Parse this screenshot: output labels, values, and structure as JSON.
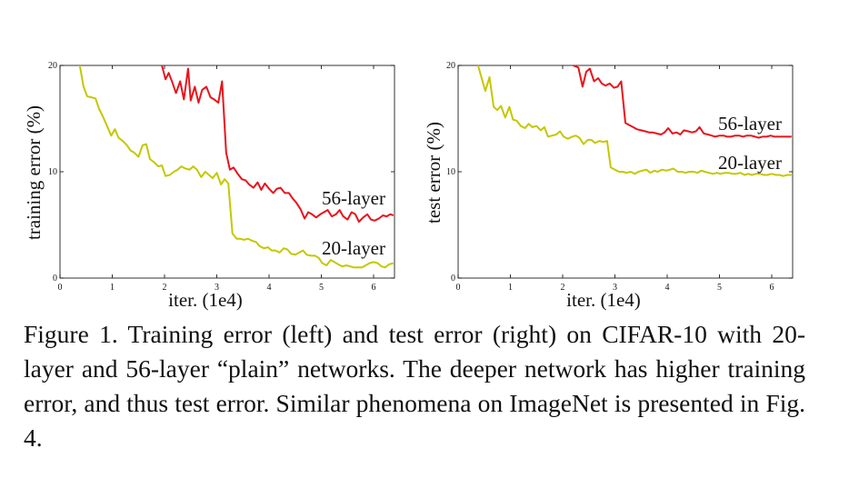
{
  "caption": "Figure 1. Training error (left) and test error (right) on CIFAR-10 with 20-layer and 56-layer “plain” networks. The deeper network has higher training error, and thus test error. Similar phenomena on ImageNet is presented in Fig. 4.",
  "chart_data": [
    {
      "type": "line",
      "xlabel": "iter. (1e4)",
      "ylabel": "training error (%)",
      "xlim": [
        0,
        6.4
      ],
      "ylim": [
        0,
        20
      ],
      "xticks": [
        "0",
        "1",
        "2",
        "3",
        "4",
        "5",
        "6"
      ],
      "yticks": [
        "0",
        "10",
        "20"
      ],
      "grid": false,
      "series": [
        {
          "name": "56-layer",
          "color": "#e8141c",
          "x": [
            1.95,
            2.02,
            2.08,
            2.15,
            2.22,
            2.3,
            2.37,
            2.45,
            2.5,
            2.58,
            2.65,
            2.72,
            2.8,
            2.88,
            2.95,
            3.03,
            3.1,
            3.18,
            3.25,
            3.32,
            3.4,
            3.48,
            3.55,
            3.62,
            3.7,
            3.78,
            3.85,
            3.92,
            4.0,
            4.08,
            4.15,
            4.22,
            4.3,
            4.38,
            4.45,
            4.52,
            4.6,
            4.68,
            4.75,
            4.82,
            4.9,
            4.98,
            5.05,
            5.12,
            5.2,
            5.28,
            5.35,
            5.42,
            5.5,
            5.58,
            5.65,
            5.72,
            5.8,
            5.88,
            5.95,
            6.02,
            6.1,
            6.18,
            6.25,
            6.32,
            6.38
          ],
          "y": [
            20.0,
            18.7,
            19.3,
            18.4,
            17.4,
            18.5,
            16.8,
            19.7,
            16.7,
            18.0,
            16.5,
            17.7,
            18.0,
            17.0,
            16.8,
            16.5,
            18.5,
            11.8,
            10.2,
            10.4,
            9.8,
            9.3,
            9.2,
            8.8,
            8.5,
            9.0,
            8.3,
            8.9,
            8.4,
            8.0,
            8.4,
            8.5,
            8.0,
            8.0,
            7.5,
            7.1,
            6.5,
            5.6,
            6.2,
            6.0,
            5.7,
            6.0,
            6.2,
            6.4,
            5.8,
            6.0,
            6.4,
            5.8,
            5.5,
            6.2,
            6.0,
            5.3,
            5.7,
            6.0,
            5.5,
            5.4,
            5.6,
            5.9,
            5.8,
            6.0,
            5.9
          ]
        },
        {
          "name": "20-layer",
          "color": "#c5c700",
          "x": [
            0.38,
            0.45,
            0.52,
            0.6,
            0.68,
            0.75,
            0.82,
            0.9,
            0.98,
            1.05,
            1.12,
            1.2,
            1.28,
            1.35,
            1.42,
            1.5,
            1.58,
            1.65,
            1.72,
            1.8,
            1.88,
            1.95,
            2.02,
            2.1,
            2.18,
            2.25,
            2.32,
            2.4,
            2.48,
            2.55,
            2.62,
            2.7,
            2.78,
            2.85,
            2.92,
            3.0,
            3.08,
            3.15,
            3.22,
            3.3,
            3.38,
            3.45,
            3.52,
            3.6,
            3.68,
            3.75,
            3.82,
            3.9,
            3.98,
            4.05,
            4.12,
            4.2,
            4.28,
            4.35,
            4.42,
            4.5,
            4.58,
            4.65,
            4.72,
            4.8,
            4.88,
            4.95,
            5.02,
            5.1,
            5.18,
            5.25,
            5.32,
            5.4,
            5.48,
            5.55,
            5.62,
            5.7,
            5.78,
            5.85,
            5.92,
            6.0,
            6.08,
            6.15,
            6.22,
            6.3,
            6.38
          ],
          "y": [
            20.0,
            18.0,
            17.1,
            17.0,
            16.9,
            15.9,
            15.2,
            14.3,
            13.4,
            14.0,
            13.2,
            12.9,
            12.5,
            12.0,
            11.8,
            11.4,
            12.5,
            12.6,
            11.2,
            10.9,
            10.5,
            10.6,
            9.6,
            9.7,
            10.0,
            10.2,
            10.5,
            10.3,
            10.2,
            10.5,
            10.2,
            9.5,
            10.0,
            9.7,
            9.4,
            9.9,
            8.8,
            9.3,
            8.9,
            4.2,
            3.7,
            3.7,
            3.6,
            3.7,
            3.5,
            3.4,
            3.0,
            2.8,
            2.9,
            2.6,
            2.6,
            2.4,
            2.8,
            2.7,
            2.3,
            2.2,
            2.4,
            2.6,
            2.2,
            2.1,
            2.1,
            1.9,
            1.4,
            1.2,
            1.7,
            1.5,
            1.3,
            1.1,
            1.2,
            1.1,
            1.0,
            1.0,
            1.0,
            1.2,
            1.4,
            1.5,
            1.4,
            1.1,
            1.0,
            1.3,
            1.4
          ]
        }
      ]
    },
    {
      "type": "line",
      "xlabel": "iter. (1e4)",
      "ylabel": "test error (%)",
      "xlim": [
        0,
        6.4
      ],
      "ylim": [
        0,
        20
      ],
      "xticks": [
        "0",
        "1",
        "2",
        "3",
        "4",
        "5",
        "6"
      ],
      "yticks": [
        "0",
        "10",
        "20"
      ],
      "grid": false,
      "series": [
        {
          "name": "56-layer",
          "color": "#e8141c",
          "x": [
            2.2,
            2.3,
            2.38,
            2.45,
            2.52,
            2.6,
            2.68,
            2.75,
            2.82,
            2.9,
            2.98,
            3.05,
            3.12,
            3.2,
            3.27,
            3.35,
            3.42,
            3.5,
            3.58,
            3.65,
            3.72,
            3.8,
            3.88,
            3.95,
            4.02,
            4.1,
            4.18,
            4.25,
            4.32,
            4.4,
            4.48,
            4.55,
            4.62,
            4.7,
            4.78,
            4.85,
            4.92,
            5.0,
            5.08,
            5.15,
            5.22,
            5.3,
            5.38,
            5.45,
            5.52,
            5.6,
            5.68,
            5.75,
            5.82,
            5.9,
            5.98,
            6.05,
            6.12,
            6.2,
            6.28,
            6.38
          ],
          "y": [
            20.0,
            19.8,
            18.0,
            19.4,
            19.7,
            18.5,
            18.8,
            18.3,
            18.1,
            18.3,
            17.9,
            18.0,
            18.5,
            14.6,
            14.4,
            14.2,
            14.0,
            13.9,
            13.8,
            13.7,
            13.7,
            13.6,
            13.5,
            13.7,
            14.1,
            13.6,
            13.7,
            13.5,
            13.9,
            13.8,
            13.7,
            13.8,
            14.2,
            13.6,
            13.5,
            13.4,
            13.3,
            13.4,
            13.4,
            13.3,
            13.3,
            13.4,
            13.4,
            13.3,
            13.4,
            13.4,
            13.3,
            13.2,
            13.3,
            13.3,
            13.4,
            13.3,
            13.3,
            13.3,
            13.3,
            13.3
          ]
        },
        {
          "name": "20-layer",
          "color": "#c5c700",
          "x": [
            0.38,
            0.45,
            0.52,
            0.6,
            0.68,
            0.75,
            0.82,
            0.9,
            0.98,
            1.05,
            1.12,
            1.2,
            1.28,
            1.35,
            1.42,
            1.5,
            1.58,
            1.65,
            1.72,
            1.8,
            1.88,
            1.95,
            2.02,
            2.1,
            2.18,
            2.25,
            2.32,
            2.4,
            2.48,
            2.55,
            2.62,
            2.7,
            2.78,
            2.85,
            2.92,
            3.0,
            3.08,
            3.15,
            3.22,
            3.3,
            3.38,
            3.45,
            3.52,
            3.6,
            3.68,
            3.75,
            3.82,
            3.9,
            3.98,
            4.05,
            4.12,
            4.2,
            4.28,
            4.35,
            4.42,
            4.5,
            4.58,
            4.65,
            4.72,
            4.8,
            4.88,
            4.95,
            5.02,
            5.1,
            5.18,
            5.25,
            5.32,
            5.4,
            5.48,
            5.55,
            5.62,
            5.7,
            5.78,
            5.85,
            5.92,
            6.0,
            6.08,
            6.15,
            6.22,
            6.3,
            6.38
          ],
          "y": [
            20.0,
            18.8,
            17.6,
            18.9,
            16.1,
            15.8,
            16.2,
            15.1,
            16.1,
            14.9,
            14.8,
            14.3,
            14.1,
            14.5,
            14.2,
            14.3,
            13.9,
            14.2,
            13.3,
            13.4,
            13.5,
            13.8,
            13.3,
            13.1,
            13.3,
            13.4,
            13.2,
            12.6,
            13.0,
            13.0,
            12.7,
            12.9,
            12.8,
            12.9,
            10.4,
            10.2,
            10.0,
            10.0,
            9.9,
            10.0,
            9.8,
            10.0,
            10.1,
            10.2,
            9.9,
            10.1,
            10.0,
            10.2,
            10.1,
            10.2,
            10.3,
            10.0,
            10.0,
            9.9,
            10.0,
            10.0,
            9.9,
            10.1,
            10.0,
            9.9,
            9.8,
            9.9,
            9.8,
            9.9,
            9.9,
            9.8,
            9.8,
            9.9,
            9.7,
            9.8,
            9.7,
            9.8,
            9.8,
            9.7,
            9.7,
            9.8,
            9.7,
            9.7,
            9.6,
            9.7,
            9.7
          ]
        }
      ]
    }
  ]
}
